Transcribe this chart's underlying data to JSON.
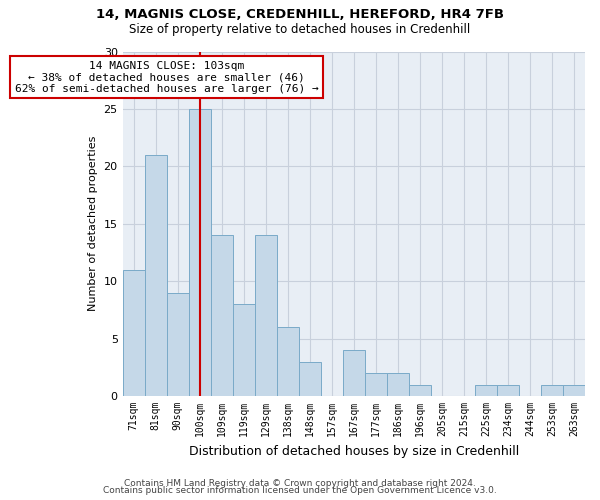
{
  "title1": "14, MAGNIS CLOSE, CREDENHILL, HEREFORD, HR4 7FB",
  "title2": "Size of property relative to detached houses in Credenhill",
  "xlabel": "Distribution of detached houses by size in Credenhill",
  "ylabel": "Number of detached properties",
  "categories": [
    "71sqm",
    "81sqm",
    "90sqm",
    "100sqm",
    "109sqm",
    "119sqm",
    "129sqm",
    "138sqm",
    "148sqm",
    "157sqm",
    "167sqm",
    "177sqm",
    "186sqm",
    "196sqm",
    "205sqm",
    "215sqm",
    "225sqm",
    "234sqm",
    "244sqm",
    "253sqm",
    "263sqm"
  ],
  "values": [
    11,
    21,
    9,
    25,
    14,
    8,
    14,
    6,
    3,
    0,
    4,
    2,
    2,
    1,
    0,
    0,
    1,
    1,
    0,
    1,
    1
  ],
  "bar_color": "#c5d8e8",
  "bar_edge_color": "#7aaac8",
  "vline_color": "#cc0000",
  "annotation_line1": "14 MAGNIS CLOSE: 103sqm",
  "annotation_line2": "← 38% of detached houses are smaller (46)",
  "annotation_line3": "62% of semi-detached houses are larger (76) →",
  "annotation_box_color": "#cc0000",
  "ylim": [
    0,
    30
  ],
  "yticks": [
    0,
    5,
    10,
    15,
    20,
    25,
    30
  ],
  "grid_color": "#c8d0dc",
  "bg_color": "#e8eef5",
  "footer1": "Contains HM Land Registry data © Crown copyright and database right 2024.",
  "footer2": "Contains public sector information licensed under the Open Government Licence v3.0."
}
